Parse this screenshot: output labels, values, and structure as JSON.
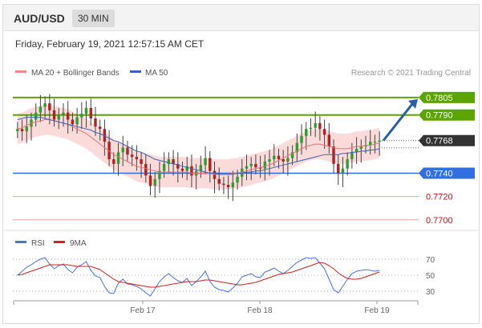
{
  "header": {
    "symbol": "AUD/USD",
    "interval": "30 MIN",
    "timestamp": "Friday, February 19, 2021 12:57:15 AM CET"
  },
  "legend": {
    "bollinger_label": "MA 20 + Bollinger Bands",
    "ma50_label": "MA 50",
    "copyright": "Research © 2021 Trading Central",
    "rsi_label": "RSI",
    "rsi_ma_label": "9MA"
  },
  "colors": {
    "candle_up": "#2e9e2e",
    "candle_down": "#b22222",
    "bollinger_fill": "#fbd6d6",
    "ma20": "#e57373",
    "ma50": "#3a62b8",
    "resistance": "#5aa500",
    "support": "#2f6fe0",
    "target_red": "#cc1111",
    "arrow": "#2a5ea8",
    "rsi": "#4a74d8",
    "rsi_ma": "#d32020"
  },
  "chart_data": [
    {
      "type": "line",
      "title": "",
      "description_series": "candlestick price",
      "x_ticks": [
        "Feb 17",
        "Feb 18",
        "Feb 19"
      ],
      "ylim": [
        0.7693,
        0.782
      ],
      "current_price": {
        "value": 0.7768,
        "label": "0.7768"
      },
      "levels": [
        {
          "value": 0.7805,
          "label": "0.7805",
          "kind": "resistance"
        },
        {
          "value": 0.779,
          "label": "0.7790",
          "kind": "resistance"
        },
        {
          "value": 0.774,
          "label": "0.7740",
          "kind": "support"
        },
        {
          "value": 0.772,
          "label": "0.7720",
          "kind": "target"
        },
        {
          "value": 0.77,
          "label": "0.7700",
          "kind": "target"
        }
      ],
      "forecast_arrow": {
        "from": 0.7768,
        "to": 0.7805
      },
      "close_series": [
        0.7778,
        0.7776,
        0.778,
        0.7786,
        0.7792,
        0.7797,
        0.78,
        0.7794,
        0.7786,
        0.779,
        0.7792,
        0.7786,
        0.7782,
        0.7788,
        0.7791,
        0.7796,
        0.7787,
        0.778,
        0.7778,
        0.7767,
        0.7752,
        0.7748,
        0.7758,
        0.7762,
        0.7756,
        0.7754,
        0.7752,
        0.7748,
        0.7738,
        0.7729,
        0.7735,
        0.7742,
        0.7748,
        0.7752,
        0.7748,
        0.7744,
        0.7742,
        0.7746,
        0.7738,
        0.7742,
        0.7747,
        0.7753,
        0.7742,
        0.7735,
        0.7731,
        0.773,
        0.7728,
        0.7732,
        0.7737,
        0.7744,
        0.7746,
        0.7748,
        0.7745,
        0.7744,
        0.775,
        0.7752,
        0.7755,
        0.7752,
        0.775,
        0.7753,
        0.7758,
        0.7766,
        0.7772,
        0.7778,
        0.7779,
        0.7783,
        0.7778,
        0.7773,
        0.7763,
        0.7748,
        0.774,
        0.7744,
        0.7752,
        0.7758,
        0.7761,
        0.7763,
        0.7764,
        0.7767,
        0.7767,
        0.7768
      ],
      "ma20": [
        0.7778,
        0.7779,
        0.7781,
        0.7783,
        0.7784,
        0.7785,
        0.7786,
        0.7786,
        0.7785,
        0.7784,
        0.7783,
        0.7782,
        0.778,
        0.7778,
        0.7776,
        0.7774,
        0.7771,
        0.7768,
        0.7765,
        0.7762,
        0.7759,
        0.7756,
        0.7754,
        0.7752,
        0.775,
        0.7748,
        0.7746,
        0.7745,
        0.7744,
        0.7743,
        0.7742,
        0.7741,
        0.7741,
        0.7741,
        0.7741,
        0.7741,
        0.7741,
        0.7741,
        0.774,
        0.774,
        0.774,
        0.774,
        0.774,
        0.7739,
        0.7739,
        0.7739,
        0.7739,
        0.774,
        0.774,
        0.7741,
        0.7742,
        0.7743,
        0.7744,
        0.7745,
        0.7746,
        0.7747,
        0.7749,
        0.7751,
        0.7753,
        0.7755,
        0.7757,
        0.7759,
        0.7761,
        0.7763,
        0.7764,
        0.7765,
        0.7765,
        0.7764,
        0.7763,
        0.7762,
        0.7761,
        0.7761,
        0.7761,
        0.7762,
        0.7763,
        0.7763,
        0.7764,
        0.7764,
        0.7765,
        0.7766
      ],
      "ma50": [
        0.7786,
        0.7787,
        0.7788,
        0.7788,
        0.7788,
        0.7788,
        0.7787,
        0.7786,
        0.7785,
        0.7784,
        0.7783,
        0.7782,
        0.7781,
        0.778,
        0.7779,
        0.7778,
        0.7777,
        0.7775,
        0.7774,
        0.7772,
        0.777,
        0.7768,
        0.7767,
        0.7765,
        0.7763,
        0.7761,
        0.7759,
        0.7758,
        0.7756,
        0.7754,
        0.7752,
        0.7751,
        0.775,
        0.7749,
        0.7748,
        0.7747,
        0.7746,
        0.7745,
        0.7744,
        0.7743,
        0.7742,
        0.7741,
        0.774,
        0.774,
        0.7739,
        0.7739,
        0.7739,
        0.7739,
        0.774,
        0.774,
        0.7741,
        0.7741,
        0.7742,
        0.7742,
        0.7743,
        0.7744,
        0.7745,
        0.7746,
        0.7747,
        0.7748,
        0.7749,
        0.775,
        0.7751,
        0.7752,
        0.7753,
        0.7754,
        0.7755,
        0.7756,
        0.7756,
        0.7756,
        0.7756,
        0.7757,
        0.7757,
        0.7758,
        0.7758,
        0.7759,
        0.7759,
        0.776,
        0.776,
        0.7761
      ],
      "bb_width": 0.0013
    },
    {
      "type": "line",
      "title": "RSI",
      "ylim": [
        20,
        80
      ],
      "y_ticks": [
        "70",
        "50",
        "30"
      ],
      "x_ticks": [
        "Feb 17",
        "Feb 18",
        "Feb 19"
      ],
      "rsi": [
        50,
        55,
        60,
        63,
        67,
        70,
        72,
        64,
        58,
        62,
        64,
        57,
        53,
        60,
        63,
        67,
        56,
        49,
        47,
        36,
        28,
        27,
        40,
        45,
        39,
        38,
        36,
        33,
        28,
        24,
        33,
        42,
        48,
        52,
        47,
        43,
        41,
        46,
        37,
        42,
        48,
        55,
        42,
        35,
        32,
        31,
        29,
        34,
        40,
        48,
        50,
        52,
        48,
        47,
        54,
        56,
        59,
        55,
        52,
        56,
        61,
        66,
        69,
        72,
        71,
        72,
        65,
        58,
        45,
        32,
        28,
        36,
        45,
        52,
        55,
        56,
        57,
        56,
        55,
        56
      ],
      "rsi_ma": [
        50,
        51,
        53,
        55,
        57,
        59,
        61,
        63,
        63,
        63,
        63,
        63,
        62,
        61,
        61,
        61,
        61,
        59,
        57,
        53,
        49,
        45,
        42,
        41,
        40,
        39,
        38,
        37,
        36,
        35,
        35,
        36,
        37,
        38,
        39,
        40,
        41,
        42,
        42,
        42,
        43,
        44,
        44,
        43,
        42,
        41,
        40,
        39,
        38,
        38,
        39,
        40,
        41,
        43,
        45,
        47,
        49,
        51,
        52,
        53,
        54,
        56,
        58,
        60,
        62,
        64,
        66,
        65,
        62,
        58,
        53,
        49,
        46,
        45,
        45,
        46,
        48,
        50,
        52,
        54
      ]
    }
  ]
}
